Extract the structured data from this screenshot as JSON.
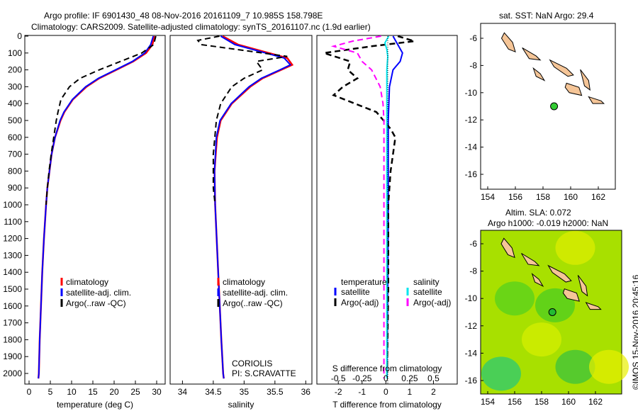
{
  "title": {
    "line1": "Argo profile: IF 6901430_48 08-Nov-2016 20161109_7 10.985S 158.798E",
    "line2": "Climatology: CARS2009. Satellite-adjusted climatology: synTS_20161107.nc (1.9d earlier)"
  },
  "colors": {
    "climatology": "#ff0000",
    "satellite": "#0000ff",
    "argo": "#000000",
    "sal_sat": "#00e5ee",
    "sal_argo": "#ff00ff",
    "land": "#f5c597",
    "argo_dot": "#33cc33"
  },
  "chart_data": [
    {
      "type": "line",
      "name": "temperature",
      "xlabel": "temperature (deg C)",
      "xlim": [
        -1,
        32
      ],
      "ylim": [
        2060,
        0
      ],
      "xticks": [
        0,
        5,
        10,
        15,
        20,
        25,
        30
      ],
      "yticks": [
        0,
        100,
        200,
        300,
        400,
        500,
        600,
        700,
        800,
        900,
        1000,
        1100,
        1200,
        1300,
        1400,
        1500,
        1600,
        1700,
        1800,
        1900,
        2000
      ],
      "legend": [
        "climatology",
        "satellite-adj. clim.",
        "Argo(..raw -QC)"
      ],
      "series": [
        {
          "name": "climatology",
          "depth": [
            0,
            50,
            100,
            150,
            200,
            250,
            300,
            375,
            450,
            500,
            600,
            700,
            800,
            900,
            1000,
            1200,
            1400,
            1600,
            1800,
            2000,
            2030
          ],
          "values": [
            29.5,
            29,
            27.5,
            24.5,
            20.5,
            16.5,
            13.5,
            10.3,
            8.3,
            7.4,
            6.1,
            5.3,
            4.8,
            4.3,
            4,
            3.5,
            3.1,
            2.8,
            2.5,
            2.3,
            2.2
          ]
        },
        {
          "name": "satellite-adj. clim.",
          "depth": [
            0,
            50,
            100,
            150,
            200,
            250,
            300,
            375,
            450,
            500,
            600,
            700,
            800,
            900,
            1000,
            1200,
            1400,
            1600,
            1800,
            2000,
            2030
          ],
          "values": [
            29.2,
            28.6,
            27.2,
            24.3,
            20.3,
            16.3,
            13.3,
            10.2,
            8.2,
            7.3,
            6.1,
            5.3,
            4.8,
            4.3,
            4,
            3.5,
            3.1,
            2.8,
            2.5,
            2.3,
            2.2
          ]
        },
        {
          "name": "Argo(..raw -QC)",
          "depth": [
            0,
            50,
            100,
            150,
            200,
            250,
            300,
            375,
            450,
            500,
            600,
            700,
            800,
            900,
            1000
          ],
          "values": [
            29.8,
            29.3,
            26.5,
            21.5,
            16.5,
            12,
            9.5,
            7.5,
            6.8,
            6.4,
            5.8,
            5.2,
            4.7,
            4.3,
            4
          ]
        }
      ]
    },
    {
      "type": "line",
      "name": "salinity",
      "xlabel": "salinity",
      "xlim": [
        33.8,
        36.1
      ],
      "ylim": [
        2060,
        0
      ],
      "xticks": [
        34,
        34.5,
        35,
        35.5,
        36
      ],
      "legend": [
        "climatology",
        "satellite-adj. clim.",
        "Argo(..raw -QC)"
      ],
      "series": [
        {
          "name": "climatology",
          "depth": [
            0,
            50,
            100,
            130,
            170,
            200,
            250,
            300,
            400,
            500,
            600,
            800,
            1000,
            1400,
            1800,
            2000,
            2030
          ],
          "values": [
            34.65,
            34.9,
            35.4,
            35.7,
            35.78,
            35.6,
            35.3,
            35.1,
            34.8,
            34.62,
            34.56,
            34.52,
            34.53,
            34.58,
            34.63,
            34.66,
            34.67
          ]
        },
        {
          "name": "satellite-adj. clim.",
          "depth": [
            0,
            50,
            100,
            130,
            170,
            200,
            250,
            300,
            400,
            500,
            600,
            800,
            1000,
            1400,
            1800,
            2000,
            2030
          ],
          "values": [
            34.62,
            34.85,
            35.35,
            35.65,
            35.75,
            35.58,
            35.28,
            35.08,
            34.79,
            34.61,
            34.55,
            34.52,
            34.53,
            34.58,
            34.63,
            34.66,
            34.67
          ]
        },
        {
          "name": "Argo(..raw -QC)",
          "depth": [
            0,
            25,
            50,
            90,
            120,
            150,
            200,
            250,
            300,
            400,
            500,
            700,
            900,
            1000
          ],
          "values": [
            34.6,
            34.25,
            34.3,
            35.1,
            35.7,
            35.2,
            35.3,
            35.0,
            34.8,
            34.62,
            34.55,
            34.5,
            34.5,
            34.53
          ]
        }
      ]
    },
    {
      "type": "line",
      "name": "difference",
      "xlabel": "T difference from climatology",
      "x2label": "S difference from climatology",
      "xlim": [
        -2.9,
        3
      ],
      "x2lim": [
        -0.725,
        0.75
      ],
      "ylim": [
        2060,
        0
      ],
      "xticks": [
        -2,
        -1,
        0,
        1,
        2
      ],
      "x2ticks": [
        "-0.5",
        "-0.25",
        "0",
        "0.25",
        "0.5"
      ],
      "legend_t": {
        "title": "temperature",
        "items": [
          "satellite",
          "Argo(-adj)"
        ]
      },
      "legend_s": {
        "title": "salinity",
        "items": [
          "satellite",
          "Argo(-adj)"
        ]
      },
      "annotations": [
        "CORIOLIS",
        "PI: S.CRAVATTE"
      ],
      "series": [
        {
          "name": "T satellite",
          "depth": [
            0,
            50,
            100,
            150,
            200,
            300,
            500,
            700,
            1000,
            1500,
            2000,
            2030
          ],
          "values": [
            0.3,
            0.5,
            0.7,
            0.6,
            0.3,
            0.15,
            0.1,
            0.1,
            0.1,
            0.08,
            0.05,
            0.05
          ]
        },
        {
          "name": "T Argo(-adj)",
          "depth": [
            0,
            30,
            60,
            100,
            150,
            200,
            250,
            300,
            350,
            400,
            450,
            500,
            550,
            600,
            700,
            800,
            1000,
            1500,
            2000
          ],
          "values": [
            0.5,
            1.2,
            -0.6,
            -2.6,
            -1.5,
            -1.6,
            -1.2,
            -1.8,
            -2.2,
            -1.3,
            -0.4,
            -0.1,
            0.2,
            0.4,
            0.3,
            0.2,
            0.1,
            0.1,
            0.05
          ]
        },
        {
          "name": "S satellite",
          "depth": [
            0,
            40,
            80,
            120,
            200,
            400,
            700,
            1000,
            1500,
            2000,
            2030
          ],
          "values": [
            0.03,
            -0.01,
            0.01,
            0.02,
            0.01,
            0.01,
            0.01,
            0.01,
            0.01,
            0.01,
            0.01
          ]
        },
        {
          "name": "S Argo(-adj)",
          "depth": [
            0,
            30,
            60,
            100,
            150,
            200,
            300,
            400,
            500,
            700,
            1000,
            2000,
            2030
          ],
          "values": [
            -0.05,
            -0.35,
            -0.55,
            -0.3,
            -0.25,
            -0.15,
            -0.06,
            -0.03,
            -0.02,
            -0.02,
            -0.02,
            -0.02,
            -0.02
          ]
        }
      ]
    }
  ],
  "maps": [
    {
      "title": "sat. SST: NaN Argo: 29.4",
      "xticks": [
        "154",
        "156",
        "158",
        "160",
        "162"
      ],
      "yticks": [
        "-6",
        "-8",
        "-10",
        "-12",
        "-14",
        "-16"
      ],
      "argo_lon": 158.8,
      "argo_lat": -11.0
    },
    {
      "title": "Altim. SLA: 0.072",
      "subtitle": "Argo h1000: -0.019 h2000: NaN",
      "xticks": [
        "154",
        "156",
        "158",
        "160",
        "162"
      ],
      "yticks": [
        "-6",
        "-8",
        "-10",
        "-12",
        "-14",
        "-16"
      ],
      "argo_lon": 158.8,
      "argo_lat": -11.0
    }
  ],
  "copyright": "©IMOS 15-Nov-2016 20:45:16"
}
